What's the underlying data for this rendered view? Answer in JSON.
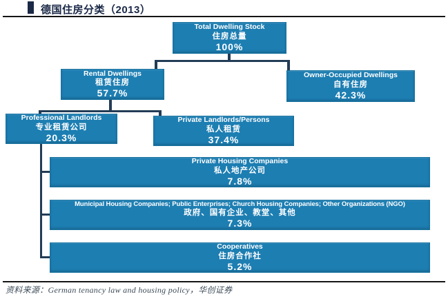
{
  "header": {
    "title": "德国住房分类（2013）"
  },
  "nodes": {
    "root": {
      "en": "Total Dwelling Stock",
      "zh": "住房总量",
      "pct": "100%"
    },
    "rental": {
      "en": "Rental Dwellings",
      "zh": "租赁住房",
      "pct": "57.7%"
    },
    "owner": {
      "en": "Owner-Occupied Dwellings",
      "zh": "自有住房",
      "pct": "42.3%"
    },
    "professional": {
      "en": "Professional Landlords",
      "zh": "专业租赁公司",
      "pct": "20.3%"
    },
    "private_persons": {
      "en": "Private Landlords/Persons",
      "zh": "私人租赁",
      "pct": "37.4%"
    },
    "private_housing": {
      "en": "Private Housing Companies",
      "zh": "私人地产公司",
      "pct": "7.8%"
    },
    "municipal": {
      "en": "Municipal Housing Companies; Public Enterprises; Church Housing Companies; Other Organizations (NGO)",
      "zh": "政府、国有企业、教堂、其他",
      "pct": "7.3%"
    },
    "cooperatives": {
      "en": "Cooperatives",
      "zh": "住房合作社",
      "pct": "5.2%"
    }
  },
  "footer": {
    "source": "资料来源：German tenancy law and housing policy，华创证券"
  },
  "colors": {
    "node_fill": "#1d7eb2",
    "connector": "#233c56",
    "title_text": "#1b2947",
    "rule": "#141414",
    "footer_text": "#3c4b58"
  }
}
